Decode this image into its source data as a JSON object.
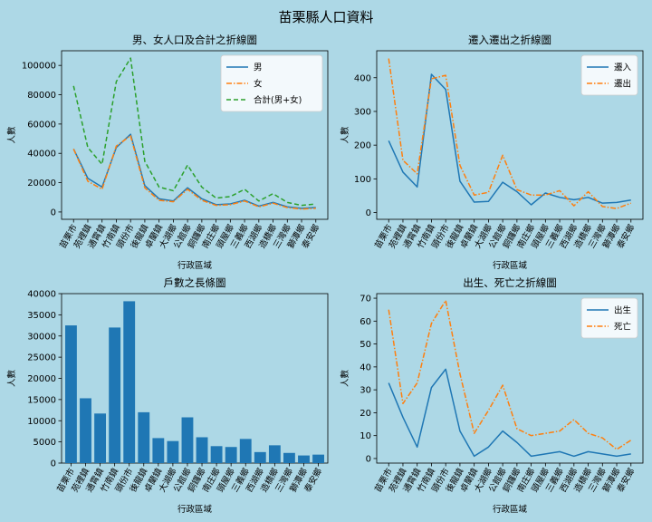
{
  "suptitle": "苗栗縣人口資料",
  "chart_data": [
    {
      "type": "line",
      "title": "男、女人口及合計之折線圖",
      "xlabel": "行政區域",
      "ylabel": "人數",
      "ylim": [
        -5000,
        110000
      ],
      "yticks": [
        0,
        20000,
        40000,
        60000,
        80000,
        100000
      ],
      "legend": "top-right",
      "categories": [
        "苗栗市",
        "苑裡鎮",
        "通霄鎮",
        "竹南鎮",
        "頭份市",
        "後龍鎮",
        "卓蘭鎮",
        "大湖鄉",
        "公館鄉",
        "銅鑼鄉",
        "南庄鄉",
        "頭屋鄉",
        "三義鄉",
        "西湖鄉",
        "造橋鄉",
        "三灣鄉",
        "獅潭鄉",
        "泰安鄉"
      ],
      "series": [
        {
          "name": "男",
          "color": "#1f77b4",
          "dash": "solid",
          "values": [
            43000,
            23000,
            17000,
            44000,
            53000,
            18000,
            9000,
            7500,
            16500,
            9000,
            5000,
            5500,
            8000,
            4000,
            6500,
            3500,
            2500,
            3000
          ]
        },
        {
          "name": "女",
          "color": "#ff7f0e",
          "dash": "dashdot",
          "values": [
            43000,
            21000,
            15500,
            45000,
            52000,
            16500,
            8000,
            7000,
            15500,
            8000,
            4500,
            5000,
            7500,
            3500,
            6000,
            3000,
            2000,
            2500
          ]
        },
        {
          "name": "合計(男+女)",
          "color": "#2ca02c",
          "dash": "dashed",
          "values": [
            86000,
            44000,
            32500,
            89000,
            105000,
            34500,
            17000,
            14500,
            32000,
            17000,
            9500,
            10500,
            15500,
            7500,
            12500,
            6500,
            4500,
            5500
          ]
        }
      ]
    },
    {
      "type": "line",
      "title": "遷入遷出之折線圖",
      "xlabel": "行政區域",
      "ylabel": "人數",
      "ylim": [
        -20,
        480
      ],
      "yticks": [
        0,
        100,
        200,
        300,
        400
      ],
      "legend": "top-right",
      "categories": [
        "苗栗市",
        "苑裡鎮",
        "通霄鎮",
        "竹南鎮",
        "頭份市",
        "後龍鎮",
        "卓蘭鎮",
        "大湖鄉",
        "公館鄉",
        "銅鑼鄉",
        "南庄鄉",
        "頭屋鄉",
        "三義鄉",
        "西湖鄉",
        "造橋鄉",
        "三灣鄉",
        "獅潭鄉",
        "泰安鄉"
      ],
      "series": [
        {
          "name": "遷入",
          "color": "#1f77b4",
          "dash": "solid",
          "values": [
            213,
            120,
            76,
            410,
            365,
            93,
            31,
            33,
            90,
            62,
            23,
            58,
            45,
            38,
            45,
            28,
            30,
            37
          ]
        },
        {
          "name": "遷出",
          "color": "#ff7f0e",
          "dash": "dashdot",
          "values": [
            457,
            155,
            115,
            397,
            407,
            140,
            52,
            60,
            170,
            68,
            52,
            52,
            65,
            20,
            62,
            18,
            12,
            28
          ]
        }
      ]
    },
    {
      "type": "bar",
      "title": "戶數之長條圖",
      "xlabel": "行政區域",
      "ylabel": "人數",
      "ylim": [
        0,
        40000
      ],
      "yticks": [
        0,
        5000,
        10000,
        15000,
        20000,
        25000,
        30000,
        35000,
        40000
      ],
      "categories": [
        "苗栗市",
        "苑裡鎮",
        "通霄鎮",
        "竹南鎮",
        "頭份市",
        "後龍鎮",
        "卓蘭鎮",
        "大湖鄉",
        "公館鄉",
        "銅鑼鄉",
        "南庄鄉",
        "頭屋鄉",
        "三義鄉",
        "西湖鄉",
        "造橋鄉",
        "三灣鄉",
        "獅潭鄉",
        "泰安鄉"
      ],
      "color": "#1f77b4",
      "values": [
        32500,
        15300,
        11700,
        32000,
        38200,
        12000,
        5900,
        5200,
        10800,
        6100,
        4000,
        3800,
        5700,
        2600,
        4200,
        2400,
        1800,
        2000
      ]
    },
    {
      "type": "line",
      "title": "出生、死亡之折線圖",
      "xlabel": "行政區域",
      "ylabel": "人數",
      "ylim": [
        -2,
        72
      ],
      "yticks": [
        0,
        10,
        20,
        30,
        40,
        50,
        60,
        70
      ],
      "legend": "top-right",
      "categories": [
        "苗栗市",
        "苑裡鎮",
        "通霄鎮",
        "竹南鎮",
        "頭份市",
        "後龍鎮",
        "卓蘭鎮",
        "大湖鄉",
        "公館鄉",
        "銅鑼鄉",
        "南庄鄉",
        "頭屋鄉",
        "三義鄉",
        "西湖鄉",
        "造橋鄉",
        "三灣鄉",
        "獅潭鄉",
        "泰安鄉"
      ],
      "series": [
        {
          "name": "出生",
          "color": "#1f77b4",
          "dash": "solid",
          "values": [
            33,
            18,
            5,
            31,
            39,
            12,
            1,
            5,
            12,
            7,
            1,
            2,
            3,
            1,
            3,
            2,
            1,
            2
          ]
        },
        {
          "name": "死亡",
          "color": "#ff7f0e",
          "dash": "dashdot",
          "values": [
            65,
            24,
            33,
            59,
            69,
            37,
            11,
            21,
            32,
            13,
            10,
            11,
            12,
            17,
            11,
            9,
            4,
            8
          ]
        }
      ]
    }
  ]
}
